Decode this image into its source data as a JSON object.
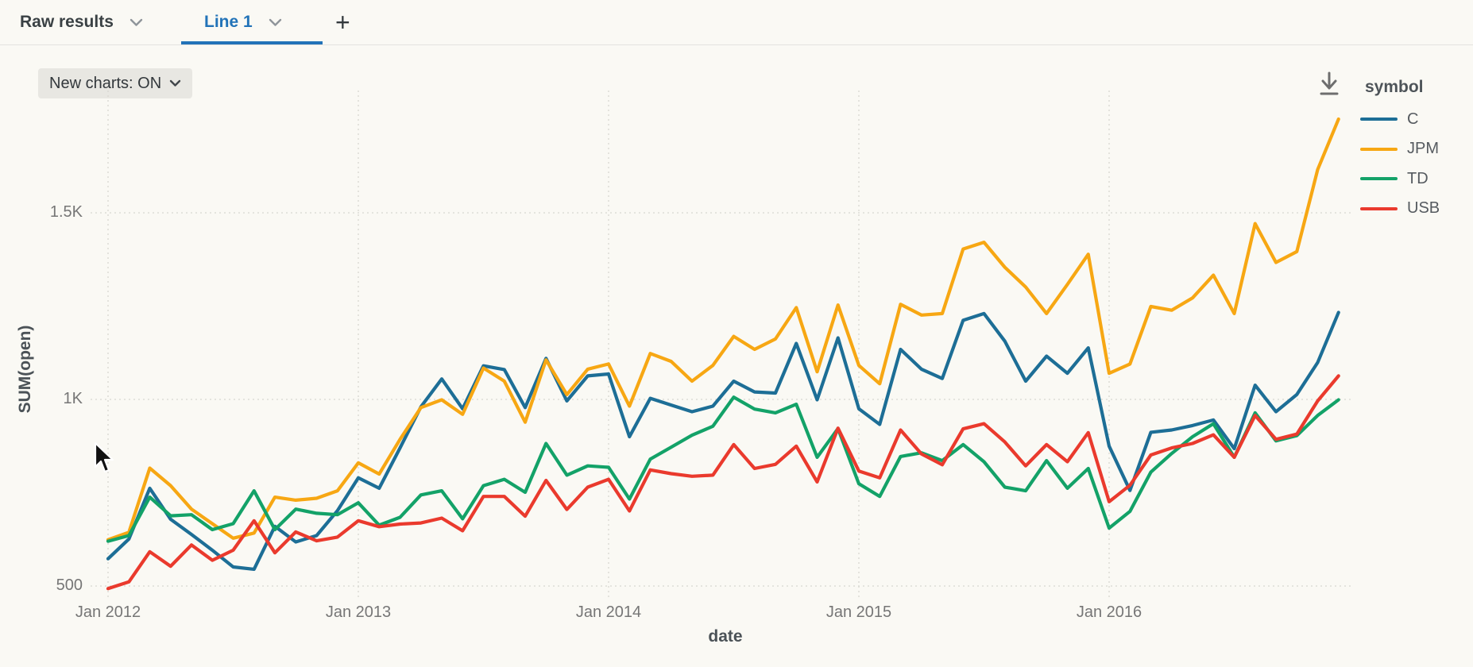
{
  "tab_bar": {
    "tabs": [
      {
        "label": "Raw results",
        "active": false
      },
      {
        "label": "Line 1",
        "active": true
      }
    ],
    "add_label": "+",
    "active_color": "#2273b8"
  },
  "toolbar": {
    "new_charts_label": "New charts: ON"
  },
  "legend": {
    "title": "symbol",
    "items": [
      {
        "label": "C",
        "color": "#1d6e96"
      },
      {
        "label": "JPM",
        "color": "#f7a713"
      },
      {
        "label": "TD",
        "color": "#13a268"
      },
      {
        "label": "USB",
        "color": "#ea3a2d"
      }
    ]
  },
  "icons": {
    "download": "download-icon",
    "tab_chevrons": "chevron-down-icon",
    "cursor": "mouse-pointer"
  },
  "chart_data": {
    "type": "line",
    "title": "",
    "xlabel": "date",
    "ylabel": "SUM(open)",
    "x_start": "Jan 2012",
    "x_freq": "monthly",
    "n_points": 60,
    "ylim": [
      480,
      1820
    ],
    "grid": "dotted",
    "legend_position": "right",
    "yticks": [
      {
        "label": "500",
        "value": 500
      },
      {
        "label": "1K",
        "value": 1000
      },
      {
        "label": "1.5K",
        "value": 1500
      }
    ],
    "xticks": [
      {
        "label": "Jan 2012",
        "month_index": 0
      },
      {
        "label": "Jan 2013",
        "month_index": 12
      },
      {
        "label": "Jan 2014",
        "month_index": 24
      },
      {
        "label": "Jan 2015",
        "month_index": 36
      },
      {
        "label": "Jan 2016",
        "month_index": 48
      }
    ],
    "series": [
      {
        "name": "C",
        "color": "#1d6e96",
        "values": [
          573,
          626,
          762,
          679,
          638,
          596,
          551,
          545,
          660,
          618,
          635,
          702,
          790,
          762,
          870,
          980,
          1055,
          975,
          1090,
          1080,
          978,
          1110,
          996,
          1063,
          1068,
          900,
          1003,
          985,
          967,
          982,
          1049,
          1020,
          1017,
          1150,
          999,
          1165,
          975,
          933,
          1134,
          1081,
          1056,
          1212,
          1230,
          1156,
          1049,
          1116,
          1070,
          1138,
          875,
          756,
          912,
          918,
          930,
          945,
          868,
          1038,
          967,
          1013,
          1099,
          1233
        ]
      },
      {
        "name": "JPM",
        "color": "#f7a713",
        "values": [
          624,
          644,
          816,
          769,
          706,
          667,
          628,
          642,
          738,
          730,
          735,
          755,
          830,
          800,
          893,
          978,
          999,
          960,
          1084,
          1049,
          939,
          1106,
          1013,
          1081,
          1095,
          982,
          1123,
          1102,
          1049,
          1091,
          1169,
          1134,
          1162,
          1246,
          1074,
          1253,
          1091,
          1042,
          1255,
          1226,
          1230,
          1403,
          1421,
          1354,
          1301,
          1230,
          1308,
          1389,
          1070,
          1095,
          1249,
          1239,
          1272,
          1333,
          1230,
          1471,
          1367,
          1396,
          1616,
          1751
        ]
      },
      {
        "name": "TD",
        "color": "#13a268",
        "values": [
          620,
          635,
          738,
          688,
          691,
          651,
          667,
          755,
          651,
          706,
          695,
          691,
          723,
          663,
          684,
          744,
          755,
          680,
          769,
          786,
          751,
          882,
          797,
          822,
          818,
          733,
          840,
          872,
          904,
          928,
          1006,
          974,
          964,
          987,
          845,
          922,
          774,
          740,
          847,
          857,
          836,
          879,
          833,
          765,
          755,
          836,
          762,
          815,
          655,
          700,
          805,
          855,
          900,
          935,
          845,
          964,
          889,
          903,
          957,
          999
        ]
      },
      {
        "name": "USB",
        "color": "#ea3a2d",
        "values": [
          493,
          511,
          592,
          553,
          610,
          569,
          596,
          675,
          589,
          645,
          621,
          631,
          675,
          659,
          666,
          669,
          682,
          648,
          740,
          740,
          687,
          783,
          705,
          765,
          786,
          701,
          811,
          801,
          794,
          797,
          879,
          815,
          826,
          875,
          779,
          923,
          808,
          790,
          918,
          854,
          825,
          921,
          935,
          886,
          822,
          879,
          833,
          911,
          726,
          770,
          851,
          870,
          882,
          905,
          845,
          957,
          893,
          907,
          996,
          1063
        ]
      }
    ]
  }
}
